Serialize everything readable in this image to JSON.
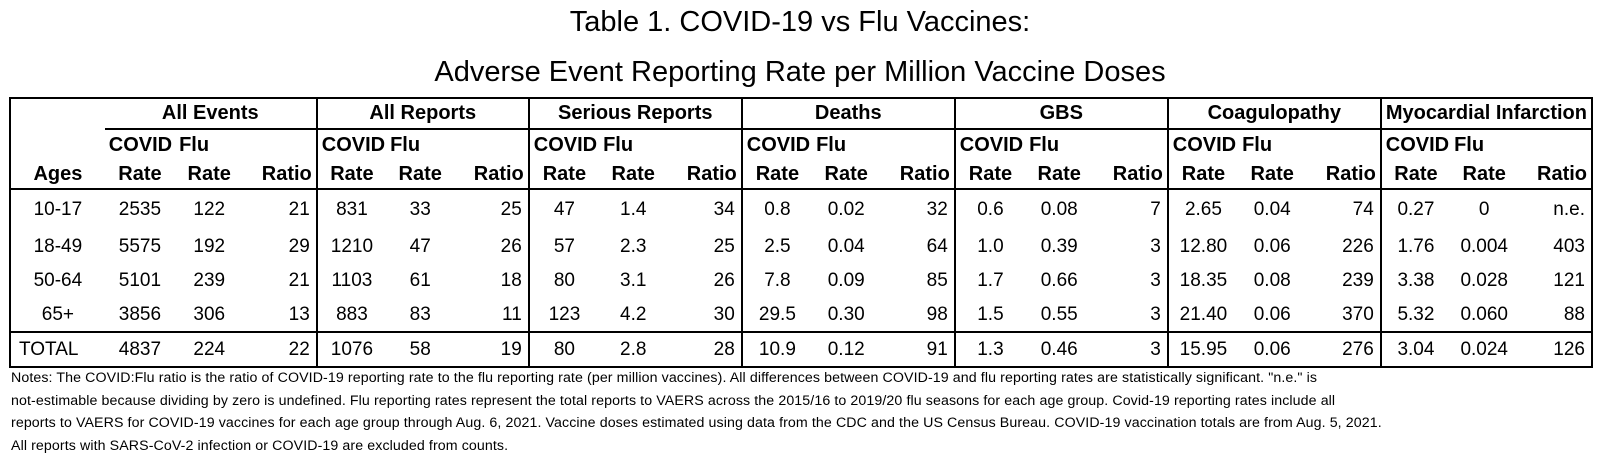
{
  "title": {
    "line1": "Table 1. COVID-19 vs Flu Vaccines:",
    "line2": "Adverse Event Reporting Rate per Million Vaccine Doses"
  },
  "table": {
    "age_header": "Ages",
    "sub_header_top": {
      "covid": "COVID",
      "flu": "Flu"
    },
    "sub_header_bottom": {
      "rate": "Rate",
      "ratio": "Ratio"
    },
    "groups": [
      "All Events",
      "All Reports",
      "Serious Reports",
      "Deaths",
      "GBS",
      "Coagulopathy",
      "Myocardial Infarction"
    ],
    "rows": [
      {
        "age": "10-17",
        "values": [
          "2535",
          "122",
          "21",
          "831",
          "33",
          "25",
          "47",
          "1.4",
          "34",
          "0.8",
          "0.02",
          "32",
          "0.6",
          "0.08",
          "7",
          "2.65",
          "0.04",
          "74",
          "0.27",
          "0",
          "n.e."
        ]
      },
      {
        "age": "18-49",
        "values": [
          "5575",
          "192",
          "29",
          "1210",
          "47",
          "26",
          "57",
          "2.3",
          "25",
          "2.5",
          "0.04",
          "64",
          "1.0",
          "0.39",
          "3",
          "12.80",
          "0.06",
          "226",
          "1.76",
          "0.004",
          "403"
        ]
      },
      {
        "age": "50-64",
        "values": [
          "5101",
          "239",
          "21",
          "1103",
          "61",
          "18",
          "80",
          "3.1",
          "26",
          "7.8",
          "0.09",
          "85",
          "1.7",
          "0.66",
          "3",
          "18.35",
          "0.08",
          "239",
          "3.38",
          "0.028",
          "121"
        ]
      },
      {
        "age": "65+",
        "values": [
          "3856",
          "306",
          "13",
          "883",
          "83",
          "11",
          "123",
          "4.2",
          "30",
          "29.5",
          "0.30",
          "98",
          "1.5",
          "0.55",
          "3",
          "21.40",
          "0.06",
          "370",
          "5.32",
          "0.060",
          "88"
        ]
      }
    ],
    "total": {
      "age": "TOTAL",
      "values": [
        "4837",
        "224",
        "22",
        "1076",
        "58",
        "19",
        "80",
        "2.8",
        "28",
        "10.9",
        "0.12",
        "91",
        "1.3",
        "0.46",
        "3",
        "15.95",
        "0.06",
        "276",
        "3.04",
        "0.024",
        "126"
      ]
    }
  },
  "notes": {
    "line1": "Notes:  The COVID:Flu ratio is the ratio of COVID-19 reporting rate to the flu reporting rate (per million vaccines). All differences between COVID-19 and flu reporting rates are statistically significant. \"n.e.\" is",
    "line2": "not-estimable because dividing by zero is undefined. Flu reporting rates represent the total reports to VAERS across the 2015/16 to 2019/20 flu seasons for each age group. Covid-19 reporting rates include all",
    "line3": "reports to VAERS for COVID-19 vaccines for each age group through Aug. 6, 2021. Vaccine doses estimated using data from the CDC and the US Census Bureau. COVID-19 vaccination totals are from Aug. 5, 2021.",
    "line4": "All reports with SARS-CoV-2 infection or COVID-19 are excluded from counts."
  }
}
